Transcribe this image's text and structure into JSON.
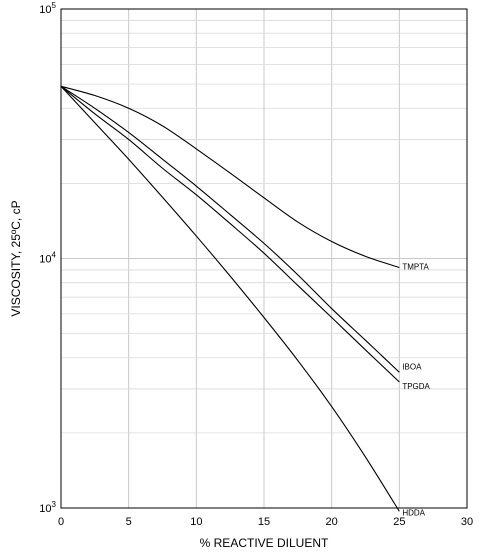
{
  "chart_data": {
    "type": "line",
    "xlabel": "% REACTIVE DILUENT",
    "ylabel": "VISCOSITY, 25ºC, cP",
    "xlim": [
      0,
      30
    ],
    "ylim": [
      1000,
      100000
    ],
    "y_scale": "log",
    "grid": true,
    "x_ticks": [
      "0",
      "5",
      "10",
      "15",
      "20",
      "25",
      "30"
    ],
    "y_ticks": [
      {
        "value": 100000,
        "base": "10",
        "exp": "5"
      },
      {
        "value": 10000,
        "base": "10",
        "exp": "4"
      },
      {
        "value": 1000,
        "base": "10",
        "exp": "3"
      }
    ],
    "series": [
      {
        "name": "TMPTA",
        "x": [
          0,
          2.5,
          5,
          7.5,
          10,
          12.5,
          15,
          17.5,
          20,
          22.5,
          25
        ],
        "y": [
          49000,
          45000,
          40000,
          34000,
          27500,
          22000,
          17500,
          14000,
          11700,
          10200,
          9200
        ]
      },
      {
        "name": "IBOA",
        "x": [
          0,
          2.5,
          5,
          7.5,
          10,
          12.5,
          15,
          17.5,
          20,
          22.5,
          25
        ],
        "y": [
          49000,
          40000,
          32000,
          25000,
          19500,
          15000,
          11500,
          8600,
          6300,
          4700,
          3500
        ]
      },
      {
        "name": "TPGDA",
        "x": [
          0,
          2.5,
          5,
          7.5,
          10,
          12.5,
          15,
          17.5,
          20,
          22.5,
          25
        ],
        "y": [
          49000,
          38000,
          30000,
          23000,
          18000,
          13800,
          10500,
          7800,
          5800,
          4300,
          3200
        ]
      },
      {
        "name": "HDDA",
        "x": [
          0,
          2.5,
          5,
          7.5,
          10,
          12.5,
          15,
          17.5,
          20,
          22.5,
          25
        ],
        "y": [
          49000,
          35000,
          25000,
          17600,
          12300,
          8500,
          5800,
          3900,
          2550,
          1600,
          970
        ]
      }
    ]
  }
}
